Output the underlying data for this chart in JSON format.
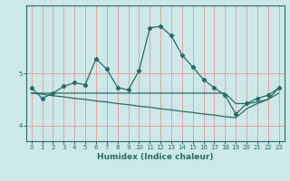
{
  "xlabel": "Humidex (Indice chaleur)",
  "x": [
    0,
    1,
    2,
    3,
    4,
    5,
    6,
    7,
    8,
    9,
    10,
    11,
    12,
    13,
    14,
    15,
    16,
    17,
    18,
    19,
    20,
    21,
    22,
    23
  ],
  "line1": [
    4.72,
    4.52,
    4.62,
    4.75,
    4.82,
    4.78,
    5.28,
    5.08,
    4.73,
    4.68,
    5.05,
    5.87,
    5.9,
    5.72,
    5.35,
    5.12,
    4.88,
    4.72,
    4.58,
    4.22,
    4.42,
    4.52,
    4.58,
    4.72
  ],
  "line2": [
    4.62,
    4.62,
    4.62,
    4.62,
    4.62,
    4.62,
    4.62,
    4.62,
    4.62,
    4.62,
    4.62,
    4.62,
    4.62,
    4.62,
    4.62,
    4.62,
    4.62,
    4.62,
    4.62,
    4.42,
    4.42,
    4.45,
    4.5,
    4.72
  ],
  "line3": [
    4.62,
    4.6,
    4.57,
    4.55,
    4.52,
    4.5,
    4.47,
    4.45,
    4.42,
    4.4,
    4.37,
    4.35,
    4.32,
    4.3,
    4.27,
    4.25,
    4.22,
    4.2,
    4.17,
    4.15,
    4.32,
    4.42,
    4.5,
    4.62
  ],
  "color": "#2a6b65",
  "bg_color": "#cce8e8",
  "plot_bg": "#cce8e8",
  "grid_color": "#e8a0a0",
  "ytick_vals": [
    4,
    5
  ],
  "ylim": [
    3.7,
    6.3
  ],
  "xlim": [
    -0.5,
    23.5
  ],
  "xticks": [
    0,
    1,
    2,
    3,
    4,
    5,
    6,
    7,
    8,
    9,
    10,
    11,
    12,
    13,
    14,
    15,
    16,
    17,
    18,
    19,
    20,
    21,
    22,
    23
  ]
}
